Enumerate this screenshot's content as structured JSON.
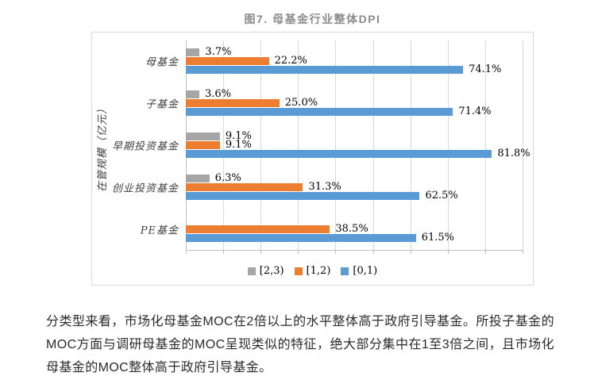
{
  "chart": {
    "title": "图7. 母基金行业整体DPI",
    "y_axis_title": "在管规模（亿元）"
  },
  "chart_data": {
    "type": "bar",
    "orientation": "horizontal",
    "title": "图7. 母基金行业整体DPI",
    "ylabel": "在管规模（亿元）",
    "xlabel": "",
    "categories": [
      "母基金",
      "子基金",
      "早期投资基金",
      "创业投资基金",
      "PE基金"
    ],
    "series": [
      {
        "name": "[2,3)",
        "color": "#A6A6A6",
        "values": [
          3.7,
          3.6,
          9.1,
          6.3,
          null
        ]
      },
      {
        "name": "[1,2)",
        "color": "#ED7D31",
        "values": [
          22.2,
          25.0,
          9.1,
          31.3,
          38.5
        ]
      },
      {
        "name": "[0,1)",
        "color": "#5B9BD5",
        "values": [
          74.1,
          71.4,
          81.8,
          62.5,
          61.5
        ]
      }
    ],
    "value_labels": {
      "母基金": {
        "[2,3)": "3.7%",
        "[1,2)": "22.2%",
        "[0,1)": "74.1%"
      },
      "子基金": {
        "[2,3)": "3.6%",
        "[1,2)": "25.0%",
        "[0,1)": "71.4%"
      },
      "早期投资基金": {
        "[2,3)": "9.1%",
        "[1,2)": "9.1%",
        "[0,1)": "81.8%"
      },
      "创业投资基金": {
        "[2,3)": "6.3%",
        "[1,2)": "31.3%",
        "[0,1)": "62.5%"
      },
      "PE基金": {
        "[1,2)": "38.5%",
        "[0,1)": "61.5%"
      }
    },
    "xlim": [
      0,
      90
    ],
    "grid_step": 10,
    "grid": true,
    "legend_position": "bottom",
    "legend_labels": [
      "[2,3)",
      "[1,2)",
      "[0,1)"
    ]
  },
  "colors": {
    "gray_series": "#A6A6A6",
    "orange_series": "#ED7D31",
    "blue_series": "#5B9BD5",
    "chart_border": "#D9D9D9",
    "gridline": "#D9D9D9",
    "title_gray": "#8C8C8C"
  },
  "paragraph": "分类型来看，市场化母基金MOC在2倍以上的水平整体高于政府引导基金。所投子基金的MOC方面与调研母基金的MOC呈现类似的特征，绝大部分集中在1至3倍之间，且市场化母基金的MOC整体高于政府引导基金。"
}
